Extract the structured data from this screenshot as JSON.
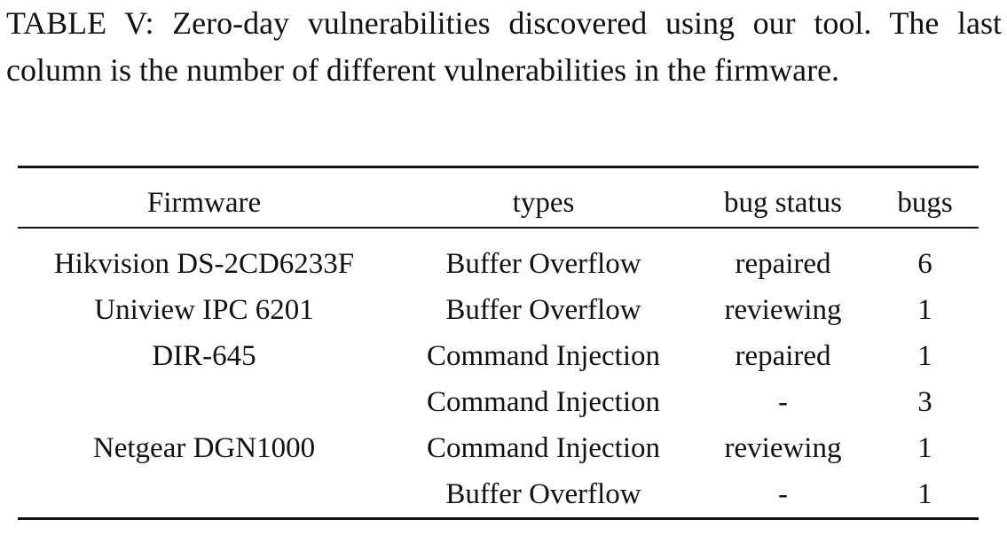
{
  "caption": "TABLE V: Zero-day vulnerabilities discovered using our tool. The last column is the number of different vulnerabilities in the firmware.",
  "table": {
    "headers": [
      "Firmware",
      "types",
      "bug status",
      "bugs"
    ],
    "rows": [
      [
        "Hikvision DS-2CD6233F",
        "Buffer Overflow",
        "repaired",
        "6"
      ],
      [
        "Uniview IPC 6201",
        "Buffer Overflow",
        "reviewing",
        "1"
      ],
      [
        "DIR-645",
        "Command Injection",
        "repaired",
        "1"
      ],
      [
        "",
        "Command Injection",
        "-",
        "3"
      ],
      [
        "Netgear DGN1000",
        "Command Injection",
        "reviewing",
        "1"
      ],
      [
        "",
        "Buffer Overflow",
        "-",
        "1"
      ]
    ]
  }
}
